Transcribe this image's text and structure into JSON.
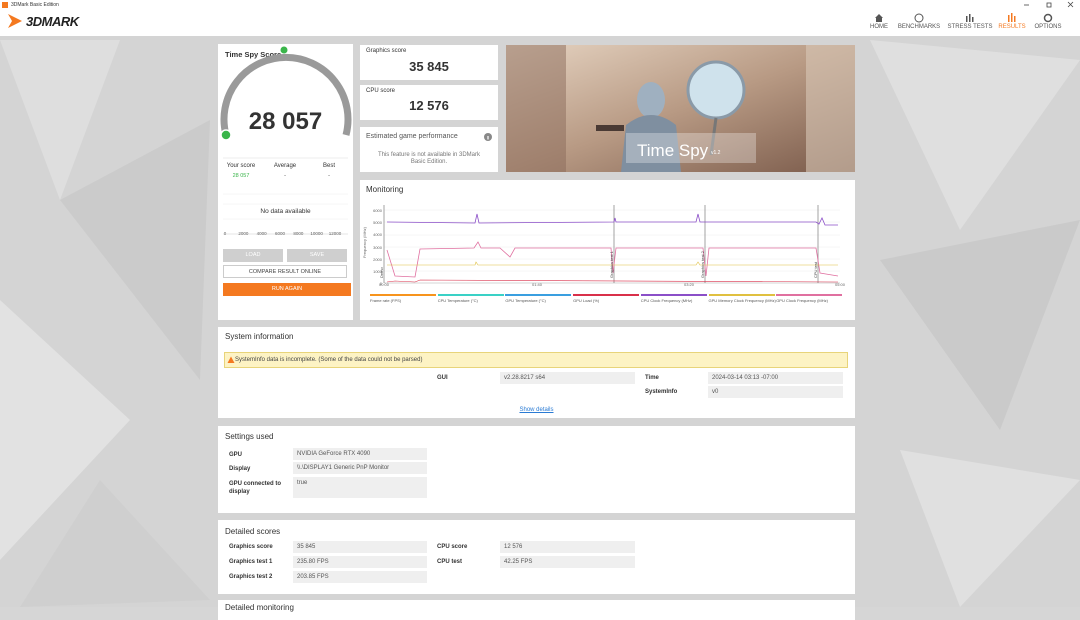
{
  "window": {
    "title": "3DMark Basic Edition"
  },
  "header": {
    "logo": "3DMARK",
    "nav": [
      "HOME",
      "BENCHMARKS",
      "STRESS TESTS",
      "RESULTS",
      "OPTIONS"
    ]
  },
  "score_card": {
    "title": "Time Spy Score",
    "score": "28 057",
    "columns": [
      "Your score",
      "Average",
      "Best"
    ],
    "values": [
      "28 057",
      "-",
      "-"
    ],
    "no_data": "No data available",
    "axis": [
      "0",
      "2000",
      "4000",
      "6000",
      "8000",
      "10000",
      "12000"
    ],
    "buttons": [
      "LOAD",
      "SAVE",
      "COMPARE RESULT ONLINE",
      "RUN AGAIN"
    ]
  },
  "graphics_score": {
    "label": "Graphics score",
    "value": "35 845"
  },
  "cpu_score": {
    "label": "CPU score",
    "value": "12 576"
  },
  "game_performance": {
    "title": "Estimated game performance",
    "message": "This feature is not available in 3DMark Basic Edition."
  },
  "banner": {
    "title": "Time Spy",
    "version": "v1.2"
  },
  "monitoring": {
    "title": "Monitoring",
    "y_label": "Frequency (MHz)",
    "y_ticks": [
      "6000",
      "5000",
      "4000",
      "3000",
      "2000",
      "1000",
      "0"
    ],
    "x_ticks": [
      "00:00",
      "01:40",
      "03:20",
      "05:00"
    ],
    "markers": [
      "Demo",
      "Graphics test 1",
      "Graphics test 2",
      "CPU test"
    ],
    "legend": [
      {
        "name": "Frame rate (FPS)",
        "color": "#f7941d"
      },
      {
        "name": "CPU Temperature (°C)",
        "color": "#3ad1c6"
      },
      {
        "name": "GPU Temperature (°C)",
        "color": "#3a9fe0"
      },
      {
        "name": "GPU Load (%)",
        "color": "#d9304a"
      },
      {
        "name": "CPU Clock Frequency (MHz)",
        "color": "#8b4fc8"
      },
      {
        "name": "GPU Memory Clock Frequency (MHz)",
        "color": "#e0c040"
      },
      {
        "name": "GPU Clock Frequency (MHz)",
        "color": "#e070a0"
      }
    ]
  },
  "system_info": {
    "title": "System information",
    "warning": "SystemInfo data is incomplete. (Some of the data could not be parsed)",
    "rows": [
      [
        "GUI",
        "v2.28.8217 s64"
      ],
      [
        "Time",
        "2024-03-14 03:13 -07:00"
      ],
      [
        "SystemInfo",
        "v0"
      ]
    ],
    "link": "Show details"
  },
  "settings": {
    "title": "Settings used",
    "rows": [
      [
        "GPU",
        "NVIDIA GeForce RTX 4090"
      ],
      [
        "Display",
        "\\\\.\\DISPLAY1 Generic PnP Monitor"
      ],
      [
        "GPU connected to display",
        "true"
      ]
    ]
  },
  "detailed_scores": {
    "title": "Detailed scores",
    "left": [
      [
        "Graphics score",
        "35 845"
      ],
      [
        "Graphics test 1",
        "235.80 FPS"
      ],
      [
        "Graphics test 2",
        "203.85 FPS"
      ]
    ],
    "right": [
      [
        "CPU score",
        "12 576"
      ],
      [
        "CPU test",
        "42.25 FPS"
      ]
    ]
  },
  "next_section": {
    "title": "Detailed monitoring"
  }
}
